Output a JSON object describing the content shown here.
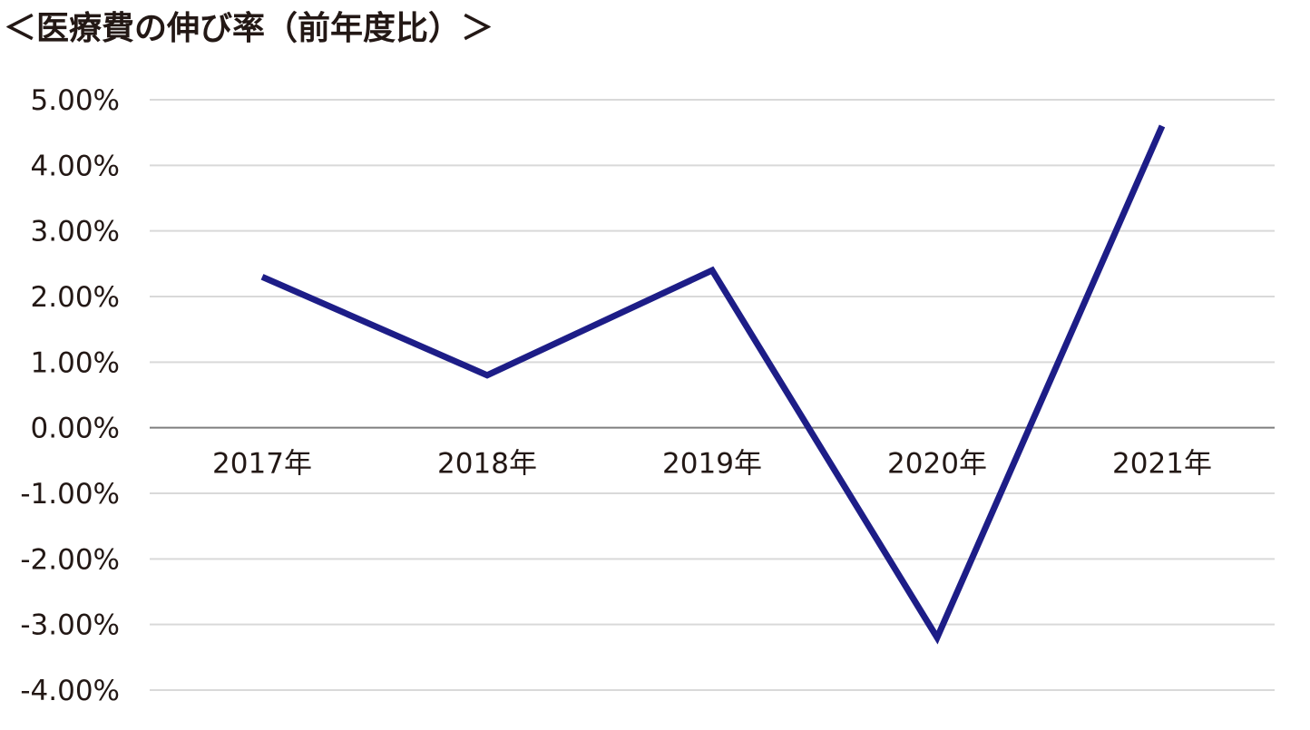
{
  "chart_data": {
    "type": "line",
    "title": "＜医療費の伸び率（前年度比）＞",
    "categories": [
      "2017年",
      "2018年",
      "2019年",
      "2020年",
      "2021年"
    ],
    "series": [
      {
        "values": [
          2.3,
          0.8,
          2.4,
          -3.2,
          4.6
        ],
        "color": "#1d1d87"
      }
    ],
    "xlabel": "",
    "ylabel": "",
    "ylim": [
      -4,
      5
    ],
    "yticks": [
      5,
      4,
      3,
      2,
      1,
      0,
      -1,
      -2,
      -3,
      -4
    ],
    "ytick_labels": [
      "5.00%",
      "4.00%",
      "3.00%",
      "2.00%",
      "1.00%",
      "0.00%",
      "-1.00%",
      "-2.00%",
      "-3.00%",
      "-4.00%"
    ],
    "grid": true,
    "legend": "none",
    "colors": {
      "grid": "#d9d9d9",
      "zero_axis": "#7f7f7f",
      "text": "#231815"
    }
  }
}
